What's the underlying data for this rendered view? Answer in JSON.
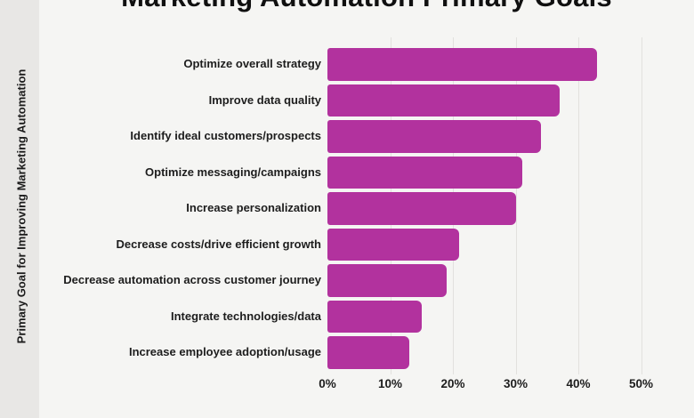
{
  "title": "Marketing Automation Primary Goals",
  "y_axis_label": "Primary Goal for Improving Marketing Automation",
  "chart_data": {
    "type": "bar",
    "orientation": "horizontal",
    "title": "Marketing Automation Primary Goals",
    "xlabel": "",
    "ylabel": "Primary Goal for Improving Marketing Automation",
    "categories": [
      "Optimize overall strategy",
      "Improve data quality",
      "Identify ideal customers/prospects",
      "Optimize messaging/campaigns",
      "Increase personalization",
      "Decrease costs/drive efficient growth",
      "Decrease automation across customer journey",
      "Integrate technologies/data",
      "Increase employee adoption/usage"
    ],
    "values": [
      43,
      37,
      34,
      31,
      30,
      21,
      19,
      15,
      13
    ],
    "unit": "%",
    "xlim": [
      0,
      50
    ],
    "x_ticks": [
      0,
      10,
      20,
      30,
      40,
      50
    ],
    "x_tick_labels": [
      "0%",
      "10%",
      "20%",
      "30%",
      "40%",
      "50%"
    ],
    "grid": true,
    "legend": "none"
  },
  "colors": {
    "bar": "#b2329e",
    "background": "#f5f5f3",
    "axis_strip": "#e8e7e5",
    "gridline": "#e2e1de",
    "text": "#1d1d1d"
  }
}
